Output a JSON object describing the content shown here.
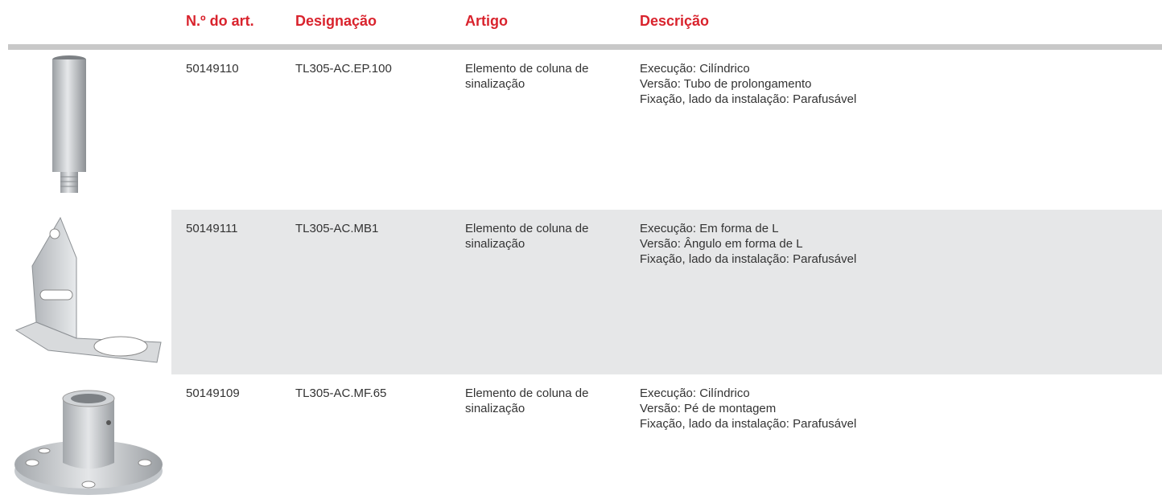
{
  "header": {
    "columns": [
      "N.º do art.",
      "Designação",
      "Artigo",
      "Descrição"
    ]
  },
  "table": {
    "rows": [
      {
        "number": "50149110",
        "designation": "TL305-AC.EP.100",
        "article": "Elemento de coluna de sinalização",
        "description": [
          "Execução: Cilíndrico",
          "Versão: Tubo de prolongamento",
          "Fixação, lado da instalação: Parafusável"
        ]
      },
      {
        "number": "50149111",
        "designation": "TL305-AC.MB1",
        "article": "Elemento de coluna de sinalização",
        "description": [
          "Execução: Em forma de L",
          "Versão: Ângulo em forma de L",
          "Fixação, lado da instalação: Parafusável"
        ]
      },
      {
        "number": "50149109",
        "designation": "TL305-AC.MF.65",
        "article": "Elemento de coluna de sinalização",
        "description": [
          "Execução: Cilíndrico",
          "Versão: Pé de montagem",
          "Fixação, lado da instalação: Parafusável"
        ]
      }
    ]
  }
}
